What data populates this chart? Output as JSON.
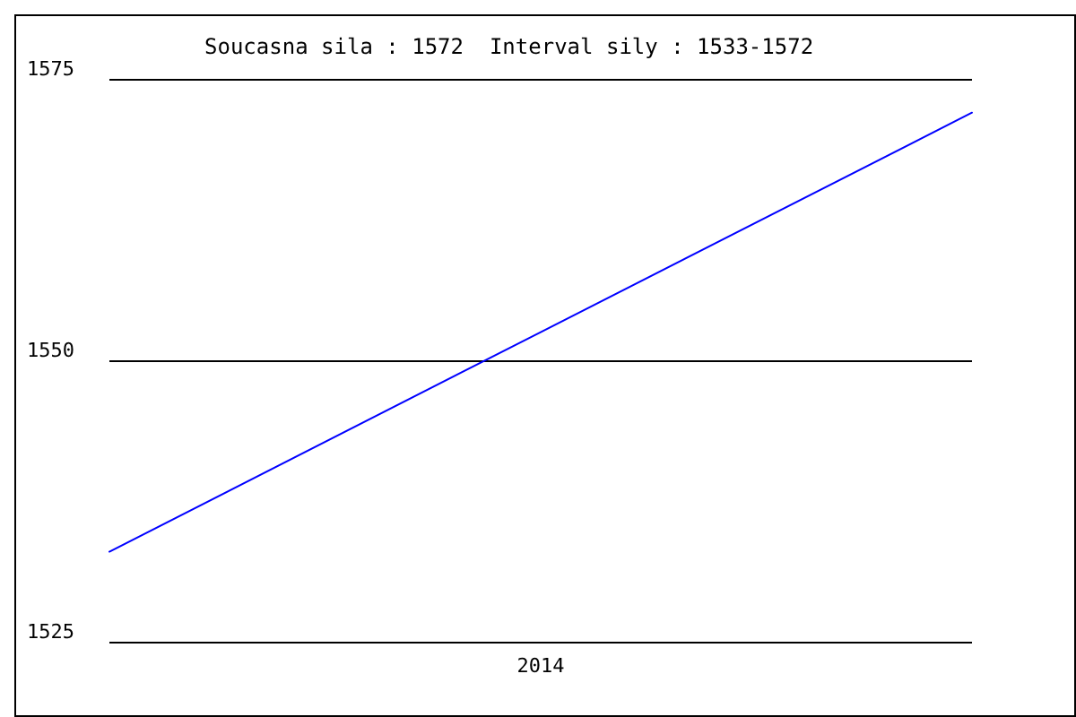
{
  "chart_data": {
    "type": "line",
    "title": "Soucasna sila : 1572  Interval sily : 1533-1572",
    "categories": [
      null,
      "2014",
      null
    ],
    "series": [
      {
        "color": "#0000ff",
        "values": [
          1533,
          1552.5,
          1572
        ]
      }
    ],
    "ylim": [
      1525,
      1575
    ],
    "yticks": [
      1525,
      1550,
      1575
    ],
    "grid": "y",
    "marker": "none",
    "line_style": "solid"
  }
}
